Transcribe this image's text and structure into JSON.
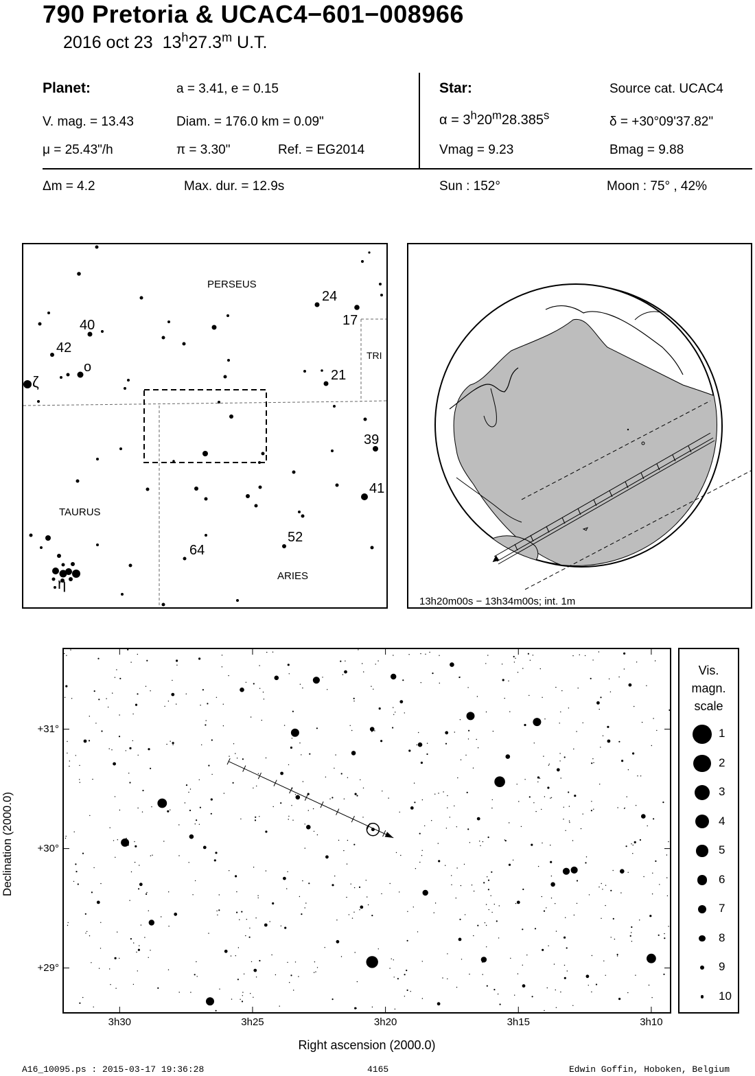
{
  "header": {
    "title": "790 Pretoria  &  UCAC4−601−008966",
    "date": "2016 oct 23",
    "time_h": "13",
    "time_h_sup": "h",
    "time_m": "27.3",
    "time_m_sup": "m",
    "time_suffix": " U.T."
  },
  "planet": {
    "heading": "Planet:",
    "orbit": "a = 3.41, e = 0.15",
    "vmag": "V. mag. = 13.43",
    "diam": "Diam. = 176.0 km = 0.09\"",
    "mu": "μ =  25.43\"/h",
    "pi": "π =  3.30\"",
    "ref": "Ref. = EG2014"
  },
  "star": {
    "heading": "Star:",
    "source": "Source cat.  UCAC4",
    "alpha_prefix": "α =  3",
    "alpha_h": "h",
    "alpha_min": "20",
    "alpha_m": "m",
    "alpha_sec": "28.385",
    "alpha_s": "s",
    "delta": "δ = +30°09'37.82\"",
    "vmag": "Vmag =  9.23",
    "bmag": "Bmag =  9.88"
  },
  "event": {
    "dm": "Δm = 4.2",
    "maxdur": "Max. dur. = 12.9s",
    "sun": "Sun : 152°",
    "moon": "Moon :  75° , 42%"
  },
  "finder_chart": {
    "constellations": [
      "PERSEUS",
      "TRI",
      "TAURUS",
      "ARIES"
    ],
    "star_labels": [
      "24",
      "17",
      "40",
      "42",
      "ο",
      "ζ",
      "21",
      "39",
      "41",
      "52",
      "64",
      "η"
    ]
  },
  "globe": {
    "caption": "13h20m00s − 13h34m00s; int.  1m"
  },
  "chart_data": {
    "type": "scatter",
    "title": "",
    "xlabel": "Right ascension (2000.0)",
    "ylabel": "Declination (2000.0)",
    "x_ticks": [
      "3h30",
      "3h25",
      "3h20",
      "3h15",
      "3h10"
    ],
    "x_tick_values_min": [
      210,
      205,
      200,
      195,
      190
    ],
    "y_ticks": [
      "+31°",
      "+30°",
      "+29°"
    ],
    "y_tick_values": [
      31,
      30,
      29
    ],
    "xlim_min": [
      212.1,
      189.3
    ],
    "ylim_deg": [
      28.63,
      31.67
    ],
    "path_start": {
      "ra_min": 205.9,
      "dec": 30.73
    },
    "path_end": {
      "ra_min": 199.7,
      "dec": 30.09
    },
    "target_star": {
      "ra_min": 200.47,
      "dec": 30.16
    },
    "stars": [
      {
        "ra_min": 200.5,
        "dec": 29.05,
        "mag": 2
      },
      {
        "ra_min": 195.7,
        "dec": 30.56,
        "mag": 3
      },
      {
        "ra_min": 190.0,
        "dec": 29.08,
        "mag": 4
      },
      {
        "ra_min": 208.4,
        "dec": 30.38,
        "mag": 4
      },
      {
        "ra_min": 196.8,
        "dec": 31.11,
        "mag": 5
      },
      {
        "ra_min": 194.3,
        "dec": 31.06,
        "mag": 5
      },
      {
        "ra_min": 203.4,
        "dec": 30.97,
        "mag": 5
      },
      {
        "ra_min": 206.6,
        "dec": 28.72,
        "mag": 5
      },
      {
        "ra_min": 209.8,
        "dec": 30.05,
        "mag": 5
      },
      {
        "ra_min": 202.6,
        "dec": 31.41,
        "mag": 6
      },
      {
        "ra_min": 193.2,
        "dec": 29.81,
        "mag": 6
      },
      {
        "ra_min": 192.9,
        "dec": 29.82,
        "mag": 6
      },
      {
        "ra_min": 199.7,
        "dec": 31.44,
        "mag": 7
      },
      {
        "ra_min": 196.3,
        "dec": 29.07,
        "mag": 7
      },
      {
        "ra_min": 198.5,
        "dec": 29.63,
        "mag": 7
      },
      {
        "ra_min": 208.8,
        "dec": 29.38,
        "mag": 7
      },
      {
        "ra_min": 201.2,
        "dec": 30.8,
        "mag": 8
      },
      {
        "ra_min": 205.4,
        "dec": 31.33,
        "mag": 8
      },
      {
        "ra_min": 204.1,
        "dec": 31.43,
        "mag": 8
      },
      {
        "ra_min": 207.3,
        "dec": 30.1,
        "mag": 8
      },
      {
        "ra_min": 190.3,
        "dec": 30.27,
        "mag": 8
      },
      {
        "ra_min": 191.1,
        "dec": 29.81,
        "mag": 8
      },
      {
        "ra_min": 202.9,
        "dec": 30.18,
        "mag": 8
      },
      {
        "ra_min": 193.7,
        "dec": 29.7,
        "mag": 8
      },
      {
        "ra_min": 195.4,
        "dec": 30.77,
        "mag": 8
      },
      {
        "ra_min": 198.7,
        "dec": 30.87,
        "mag": 8
      },
      {
        "ra_min": 203.3,
        "dec": 30.43,
        "mag": 8
      },
      {
        "ra_min": 200.5,
        "dec": 31.0,
        "mag": 8
      },
      {
        "ra_min": 197.5,
        "dec": 31.54,
        "mag": 8
      },
      {
        "ra_min": 208.0,
        "dec": 31.29,
        "mag": 9
      },
      {
        "ra_min": 210.2,
        "dec": 30.71,
        "mag": 9
      },
      {
        "ra_min": 206.8,
        "dec": 30.01,
        "mag": 9
      },
      {
        "ra_min": 201.8,
        "dec": 29.22,
        "mag": 9
      },
      {
        "ra_min": 198.0,
        "dec": 28.7,
        "mag": 9
      },
      {
        "ra_min": 194.8,
        "dec": 28.85,
        "mag": 9
      },
      {
        "ra_min": 192.0,
        "dec": 31.22,
        "mag": 9
      },
      {
        "ra_min": 204.5,
        "dec": 29.36,
        "mag": 9
      },
      {
        "ra_min": 207.9,
        "dec": 29.45,
        "mag": 9
      },
      {
        "ra_min": 206.0,
        "dec": 29.14,
        "mag": 9
      },
      {
        "ra_min": 199.0,
        "dec": 30.34,
        "mag": 9
      },
      {
        "ra_min": 196.5,
        "dec": 30.25,
        "mag": 9
      },
      {
        "ra_min": 193.5,
        "dec": 30.66,
        "mag": 9
      },
      {
        "ra_min": 191.6,
        "dec": 30.9,
        "mag": 9
      },
      {
        "ra_min": 209.2,
        "dec": 29.7,
        "mag": 9
      },
      {
        "ra_min": 204.9,
        "dec": 28.98,
        "mag": 9
      },
      {
        "ra_min": 202.2,
        "dec": 29.93,
        "mag": 9
      },
      {
        "ra_min": 197.2,
        "dec": 29.24,
        "mag": 9
      },
      {
        "ra_min": 195.0,
        "dec": 29.55,
        "mag": 9
      },
      {
        "ra_min": 192.4,
        "dec": 28.93,
        "mag": 9
      },
      {
        "ra_min": 210.8,
        "dec": 29.55,
        "mag": 9
      },
      {
        "ra_min": 211.3,
        "dec": 30.9,
        "mag": 9
      },
      {
        "ra_min": 203.9,
        "dec": 30.63,
        "mag": 9
      },
      {
        "ra_min": 201.5,
        "dec": 31.48,
        "mag": 9
      },
      {
        "ra_min": 199.4,
        "dec": 31.23,
        "mag": 9
      },
      {
        "ra_min": 197.7,
        "dec": 30.97,
        "mag": 9
      },
      {
        "ra_min": 200.9,
        "dec": 29.51,
        "mag": 9
      },
      {
        "ra_min": 203.8,
        "dec": 29.75,
        "mag": 9
      },
      {
        "ra_min": 190.8,
        "dec": 31.37,
        "mag": 9
      }
    ]
  },
  "mag_scale": {
    "title": "Vis.\nmagn.\nscale",
    "title_lines": [
      "Vis.",
      "magn.",
      "scale"
    ],
    "levels": [
      "1",
      "2",
      "3",
      "4",
      "5",
      "6",
      "7",
      "8",
      "9",
      "10"
    ]
  },
  "footer": {
    "left": "A16_10095.ps : 2015-03-17 19:36:28",
    "center": "4165",
    "right": "Edwin Goffin, Hoboken, Belgium"
  }
}
